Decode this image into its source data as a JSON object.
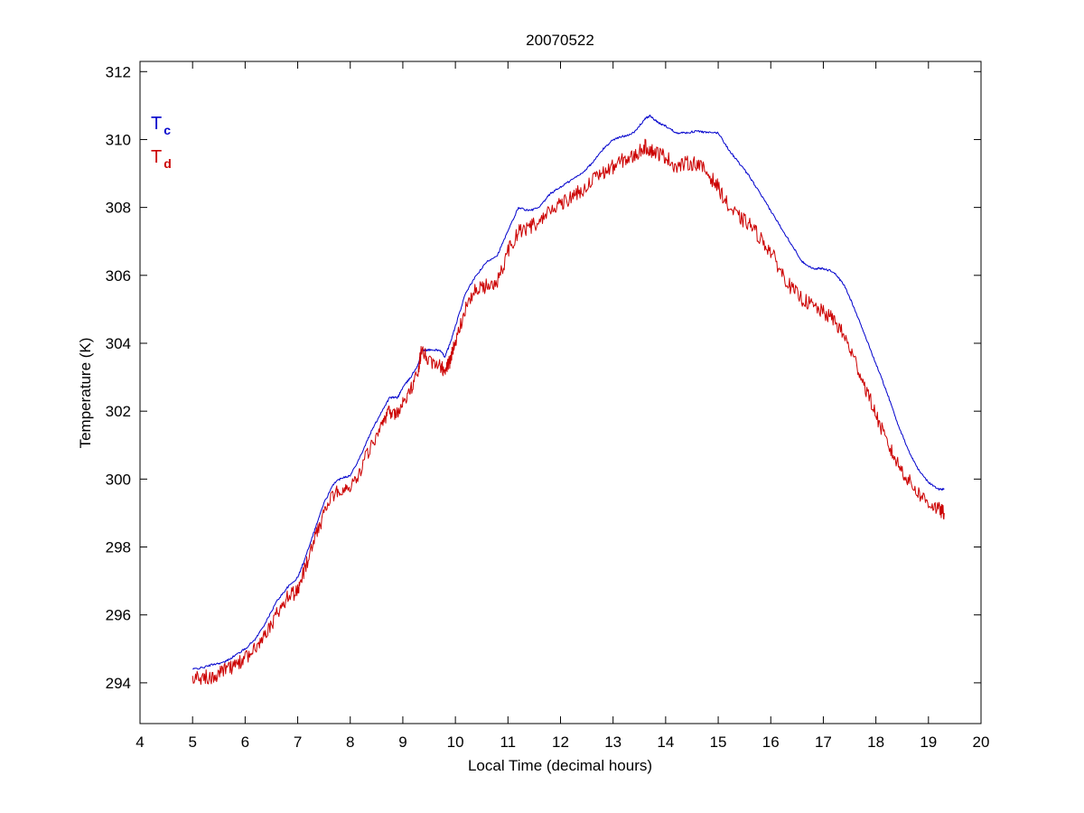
{
  "chart_data": {
    "type": "line",
    "title": "20070522",
    "xlabel": "Local Time (decimal hours)",
    "ylabel": "Temperature (K)",
    "xlim": [
      4,
      20
    ],
    "ylim": [
      292.8,
      312.3
    ],
    "xticks": [
      4,
      5,
      6,
      7,
      8,
      9,
      10,
      11,
      12,
      13,
      14,
      15,
      16,
      17,
      18,
      19,
      20
    ],
    "yticks": [
      294,
      296,
      298,
      300,
      302,
      304,
      306,
      308,
      310,
      312
    ],
    "xtick_labels": [
      "4",
      "5",
      "6",
      "7",
      "8",
      "9",
      "10",
      "11",
      "12",
      "13",
      "14",
      "15",
      "16",
      "17",
      "18",
      "19",
      "20"
    ],
    "ytick_labels": [
      "294",
      "296",
      "298",
      "300",
      "302",
      "304",
      "306",
      "308",
      "310",
      "312"
    ],
    "grid": false,
    "legend_position": "top-left",
    "series": [
      {
        "name_main": "T",
        "name_sub": "c",
        "color": "#0000cc",
        "noise": 0.03,
        "x": [
          5.0,
          5.2,
          5.4,
          5.6,
          5.8,
          6.0,
          6.2,
          6.4,
          6.6,
          6.8,
          7.0,
          7.1,
          7.3,
          7.5,
          7.7,
          7.85,
          8.0,
          8.2,
          8.4,
          8.6,
          8.75,
          8.9,
          9.0,
          9.15,
          9.3,
          9.35,
          9.5,
          9.7,
          9.8,
          9.9,
          10.0,
          10.2,
          10.4,
          10.6,
          10.8,
          11.0,
          11.2,
          11.4,
          11.6,
          11.8,
          12.0,
          12.2,
          12.4,
          12.6,
          12.8,
          13.0,
          13.2,
          13.4,
          13.6,
          13.7,
          13.85,
          14.0,
          14.2,
          14.4,
          14.6,
          14.8,
          15.0,
          15.2,
          15.4,
          15.6,
          15.8,
          16.0,
          16.2,
          16.4,
          16.6,
          16.8,
          17.0,
          17.2,
          17.4,
          17.6,
          17.8,
          18.0,
          18.2,
          18.4,
          18.6,
          18.8,
          19.0,
          19.2,
          19.3
        ],
        "y": [
          294.4,
          294.45,
          294.55,
          294.6,
          294.8,
          295.0,
          295.3,
          295.8,
          296.4,
          296.8,
          297.1,
          297.5,
          298.4,
          299.3,
          299.9,
          300.05,
          300.1,
          300.7,
          301.4,
          302.0,
          302.4,
          302.4,
          302.7,
          303.0,
          303.4,
          303.8,
          303.8,
          303.8,
          303.6,
          304.0,
          304.5,
          305.5,
          306.0,
          306.4,
          306.6,
          307.3,
          308.0,
          307.9,
          308.0,
          308.4,
          308.6,
          308.8,
          309.0,
          309.3,
          309.7,
          310.0,
          310.1,
          310.2,
          310.6,
          310.7,
          310.5,
          310.4,
          310.2,
          310.2,
          310.25,
          310.2,
          310.2,
          309.7,
          309.3,
          308.9,
          308.4,
          307.9,
          307.4,
          306.9,
          306.4,
          306.2,
          306.2,
          306.1,
          305.7,
          305.0,
          304.2,
          303.4,
          302.6,
          301.7,
          300.9,
          300.3,
          299.9,
          299.7,
          299.7
        ]
      },
      {
        "name_main": "T",
        "name_sub": "d",
        "color": "#cc0000",
        "noise": 0.22,
        "x": [
          5.0,
          5.2,
          5.4,
          5.6,
          5.8,
          6.0,
          6.2,
          6.4,
          6.6,
          6.8,
          7.0,
          7.1,
          7.3,
          7.5,
          7.7,
          7.85,
          8.0,
          8.2,
          8.4,
          8.6,
          8.75,
          8.9,
          9.0,
          9.15,
          9.3,
          9.35,
          9.5,
          9.7,
          9.8,
          9.9,
          10.0,
          10.2,
          10.4,
          10.6,
          10.8,
          11.0,
          11.2,
          11.4,
          11.6,
          11.8,
          12.0,
          12.2,
          12.4,
          12.6,
          12.8,
          13.0,
          13.2,
          13.4,
          13.6,
          13.7,
          13.85,
          14.0,
          14.2,
          14.4,
          14.6,
          14.8,
          15.0,
          15.2,
          15.4,
          15.6,
          15.8,
          16.0,
          16.2,
          16.4,
          16.6,
          16.8,
          17.0,
          17.2,
          17.4,
          17.6,
          17.8,
          18.0,
          18.2,
          18.4,
          18.6,
          18.8,
          19.0,
          19.2,
          19.3
        ],
        "y": [
          294.15,
          294.15,
          294.2,
          294.35,
          294.5,
          294.7,
          295.0,
          295.4,
          296.0,
          296.5,
          296.7,
          297.2,
          298.1,
          299.0,
          299.6,
          299.7,
          299.75,
          300.3,
          301.0,
          301.5,
          302.0,
          301.9,
          302.3,
          302.6,
          303.2,
          303.8,
          303.5,
          303.4,
          303.1,
          303.5,
          304.0,
          305.1,
          305.6,
          305.7,
          305.8,
          306.7,
          307.3,
          307.4,
          307.6,
          307.9,
          308.1,
          308.3,
          308.5,
          308.8,
          309.0,
          309.2,
          309.4,
          309.5,
          309.8,
          309.7,
          309.6,
          309.5,
          309.2,
          309.3,
          309.3,
          309.0,
          308.6,
          308.0,
          307.7,
          307.5,
          307.1,
          306.7,
          306.1,
          305.6,
          305.3,
          305.1,
          304.9,
          304.7,
          304.2,
          303.5,
          302.7,
          301.9,
          301.1,
          300.5,
          300.0,
          299.6,
          299.3,
          299.1,
          299.0
        ]
      }
    ]
  }
}
